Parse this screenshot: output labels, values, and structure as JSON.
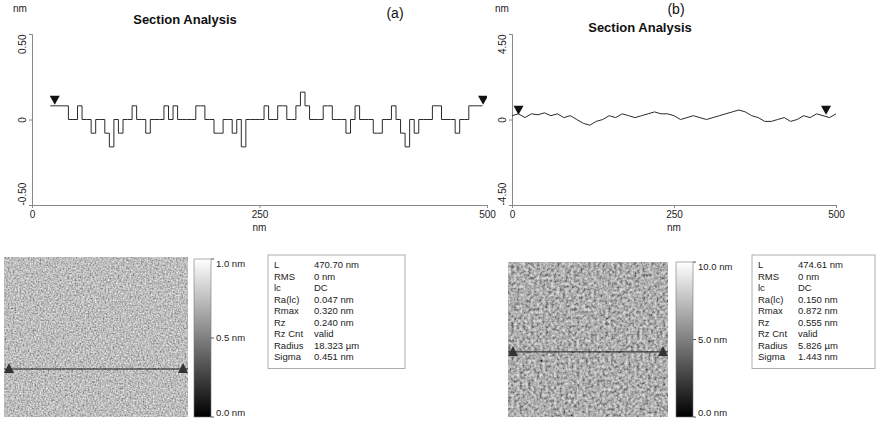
{
  "chart_data": [
    {
      "type": "line",
      "title": "Section Analysis",
      "panel": "(a)",
      "x_label": "nm",
      "y_label": "nm",
      "xlim": [
        0,
        500
      ],
      "xticks": [
        0,
        250,
        500
      ],
      "ylim": [
        -0.5,
        0.5
      ],
      "yticks": [
        {
          "value": -0.5,
          "label": "-0.50"
        },
        0,
        {
          "value": 0.5,
          "label": "0.50"
        }
      ],
      "grid": false,
      "x": [
        20,
        25,
        30,
        35,
        40,
        45,
        50,
        55,
        60,
        65,
        70,
        75,
        80,
        85,
        90,
        95,
        100,
        105,
        110,
        115,
        120,
        125,
        130,
        135,
        140,
        145,
        150,
        155,
        160,
        165,
        170,
        175,
        180,
        185,
        190,
        195,
        200,
        205,
        210,
        215,
        220,
        225,
        230,
        235,
        240,
        245,
        250,
        255,
        260,
        265,
        270,
        275,
        280,
        285,
        290,
        295,
        300,
        305,
        310,
        315,
        320,
        325,
        330,
        335,
        340,
        345,
        350,
        355,
        360,
        365,
        370,
        375,
        380,
        385,
        390,
        395,
        400,
        405,
        410,
        415,
        420,
        425,
        430,
        435,
        440,
        445,
        450,
        455,
        460,
        465,
        470,
        475,
        480,
        485,
        490,
        495
      ],
      "series": [
        {
          "color": "#2b2b2b",
          "line_style": "step",
          "values": [
            0.08,
            0.08,
            0.08,
            0.08,
            0,
            0,
            0.08,
            0,
            0,
            -0.08,
            0,
            0,
            -0.08,
            -0.16,
            0,
            -0.08,
            0,
            0,
            0.08,
            0,
            0,
            -0.08,
            0,
            0,
            0,
            0.08,
            0,
            0.08,
            0,
            0,
            0,
            0,
            0.08,
            0.08,
            0,
            0,
            -0.08,
            -0.08,
            0,
            0,
            -0.08,
            0,
            -0.16,
            0,
            0,
            0,
            0,
            0.08,
            0,
            0,
            0.08,
            0.08,
            0,
            0,
            0.08,
            0.16,
            0.08,
            0,
            0,
            0,
            0.08,
            0.08,
            0,
            0,
            0,
            -0.08,
            0,
            0.08,
            0,
            0,
            0,
            -0.08,
            -0.08,
            0,
            0,
            0.08,
            0,
            -0.08,
            -0.16,
            0,
            -0.08,
            0,
            0,
            0,
            0.08,
            0.08,
            0,
            0,
            0,
            -0.08,
            0,
            0,
            0.08,
            0.08,
            0.08,
            0.08
          ]
        }
      ],
      "cursors": {
        "x": [
          25,
          495.7
        ],
        "y": [
          0.08,
          0.08
        ]
      },
      "image": {
        "colorbar": {
          "range": [
            0,
            1
          ],
          "ticks": [
            {
              "value": 0,
              "label": "0.0 nm"
            },
            {
              "value": 0.5,
              "label": "0.5 nm"
            },
            {
              "value": 1,
              "label": "1.0 nm"
            }
          ]
        },
        "stats": [
          [
            "L",
            "470.70 nm"
          ],
          [
            "RMS",
            "0 nm"
          ],
          [
            "lc",
            "DC"
          ],
          [
            "Ra(lc)",
            "0.047 nm"
          ],
          [
            "Rmax",
            "0.320 nm"
          ],
          [
            "Rz",
            "0.240 nm"
          ],
          [
            "Rz Cnt",
            "valid"
          ],
          [
            "Radius",
            "18.323 µm"
          ],
          [
            "Sigma",
            "0.451 nm"
          ]
        ]
      }
    },
    {
      "type": "line",
      "title": "Section Analysis",
      "panel": "(b)",
      "x_label": "nm",
      "y_label": "nm",
      "xlim": [
        0,
        500
      ],
      "xticks": [
        0,
        250,
        500
      ],
      "ylim": [
        -4.5,
        4.5
      ],
      "yticks": [
        {
          "value": -4.5,
          "label": "-4.50"
        },
        0,
        {
          "value": 4.5,
          "label": "4.50"
        }
      ],
      "grid": false,
      "x": [
        0,
        10,
        20,
        30,
        40,
        50,
        60,
        70,
        80,
        90,
        100,
        110,
        120,
        130,
        140,
        150,
        160,
        170,
        180,
        190,
        200,
        210,
        220,
        230,
        240,
        250,
        260,
        270,
        280,
        290,
        300,
        310,
        320,
        330,
        340,
        350,
        360,
        370,
        380,
        390,
        400,
        410,
        420,
        430,
        440,
        450,
        460,
        470,
        480,
        490,
        500
      ],
      "series": [
        {
          "color": "#2b2b2b",
          "line_style": "solid",
          "values": [
            0.2,
            0.3,
            0.1,
            0.3,
            0.25,
            0.35,
            0.2,
            0.3,
            0.1,
            0.2,
            0.0,
            -0.2,
            -0.3,
            -0.1,
            0.0,
            0.2,
            0.1,
            0.3,
            0.2,
            0.1,
            0.2,
            0.3,
            0.4,
            0.3,
            0.3,
            0.2,
            0.0,
            0.1,
            0.2,
            0.1,
            0.0,
            0.1,
            0.2,
            0.3,
            0.4,
            0.5,
            0.4,
            0.2,
            0.1,
            -0.1,
            -0.1,
            0.0,
            0.1,
            -0.1,
            0.0,
            0.2,
            0.1,
            0.3,
            0.2,
            0.1,
            0.3
          ]
        }
      ],
      "cursors": {
        "x": [
          10,
          484.61
        ],
        "y": [
          0.2,
          0.2
        ]
      },
      "image": {
        "colorbar": {
          "range": [
            0,
            10
          ],
          "ticks": [
            {
              "value": 0,
              "label": "0.0 nm"
            },
            {
              "value": 5,
              "label": "5.0 nm"
            },
            {
              "value": 10,
              "label": "10.0 nm"
            }
          ]
        },
        "stats": [
          [
            "L",
            "474.61 nm"
          ],
          [
            "RMS",
            "0 nm"
          ],
          [
            "lc",
            "DC"
          ],
          [
            "Ra(lc)",
            "0.150 nm"
          ],
          [
            "Rmax",
            "0.872 nm"
          ],
          [
            "Rz",
            "0.555 nm"
          ],
          [
            "Rz Cnt",
            "valid"
          ],
          [
            "Radius",
            "5.826 µm"
          ],
          [
            "Sigma",
            "1.443 nm"
          ]
        ]
      }
    }
  ]
}
